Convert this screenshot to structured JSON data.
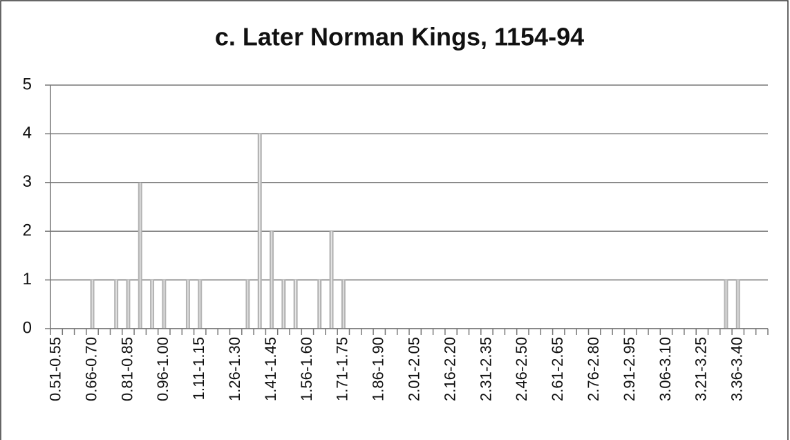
{
  "chart_data": {
    "type": "bar",
    "title": "c. Later Norman Kings, 1154-94",
    "categories": [
      "0.51-0.55",
      null,
      null,
      "0.66-0.70",
      null,
      null,
      "0.81-0.85",
      null,
      null,
      "0.96-1.00",
      null,
      null,
      "1.11-1.15",
      null,
      null,
      "1.26-1.30",
      null,
      null,
      "1.41-1.45",
      null,
      null,
      "1.56-1.60",
      null,
      null,
      "1.71-1.75",
      null,
      null,
      "1.86-1.90",
      null,
      null,
      "2.01-2.05",
      null,
      null,
      "2.16-2.20",
      null,
      null,
      "2.31-2.35",
      null,
      null,
      "2.46-2.50",
      null,
      null,
      "2.61-2.65",
      null,
      null,
      "2.76-2.80",
      null,
      null,
      "2.91-2.95",
      null,
      null,
      "3.06-3.10",
      null,
      null,
      "3.21-3.25",
      null,
      null,
      "3.36-3.40",
      null,
      null
    ],
    "values": [
      0,
      0,
      0,
      1,
      0,
      1,
      1,
      3,
      1,
      1,
      0,
      1,
      1,
      0,
      0,
      0,
      1,
      4,
      2,
      1,
      1,
      0,
      1,
      2,
      1,
      0,
      0,
      0,
      0,
      0,
      0,
      0,
      0,
      0,
      0,
      0,
      0,
      0,
      0,
      0,
      0,
      0,
      0,
      0,
      0,
      0,
      0,
      0,
      0,
      0,
      0,
      0,
      0,
      0,
      0,
      0,
      1,
      1,
      0,
      0
    ],
    "color": "#b4b4b4",
    "ylim": [
      0,
      5
    ],
    "yticks": [
      0,
      1,
      2,
      3,
      4,
      5
    ],
    "grid": true
  }
}
